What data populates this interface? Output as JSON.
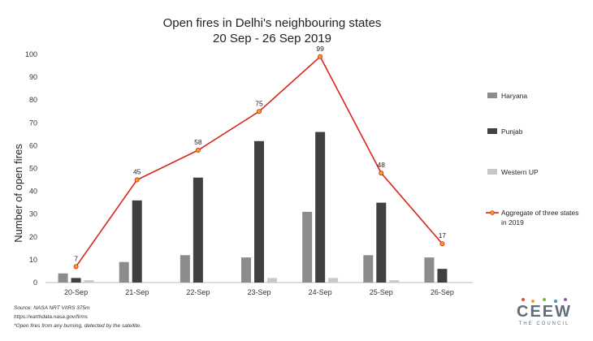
{
  "chart_data": {
    "type": "bar",
    "title": "Open fires in Delhi's neighbouring states",
    "subtitle": "20 Sep - 26 Sep 2019",
    "ylabel": "Number of open fires",
    "xlabel": "",
    "categories": [
      "20-Sep",
      "21-Sep",
      "22-Sep",
      "23-Sep",
      "24-Sep",
      "25-Sep",
      "26-Sep"
    ],
    "ylim": [
      0,
      100
    ],
    "yticks": [
      0,
      10,
      20,
      30,
      40,
      50,
      60,
      70,
      80,
      90,
      100
    ],
    "grid": false,
    "legend_position": "right",
    "series": [
      {
        "name": "Haryana",
        "type": "bar",
        "color": "#8c8c8c",
        "values": [
          4,
          9,
          12,
          11,
          31,
          12,
          11
        ]
      },
      {
        "name": "Punjab",
        "type": "bar",
        "color": "#404040",
        "values": [
          2,
          36,
          46,
          62,
          66,
          35,
          6
        ]
      },
      {
        "name": "Western UP",
        "type": "bar",
        "color": "#c8c8c8",
        "values": [
          1,
          0,
          0,
          2,
          2,
          1,
          0
        ]
      },
      {
        "name": "Aggregate of three states in 2019",
        "type": "line",
        "color": "#d9261c",
        "marker_color": "#f0a020",
        "values": [
          7,
          45,
          58,
          75,
          99,
          48,
          17
        ]
      }
    ]
  },
  "source": {
    "line1": "Source: NASA NRT VIIRS 375m",
    "line2": "https://earthdata.nasa.gov/firms",
    "line3": "*Open fires from any burning, detected by the satellite."
  },
  "logo": {
    "name": "CEEW",
    "subtitle": "THE COUNCIL",
    "dot_colors": [
      "#e84b3a",
      "#f5a623",
      "#7cb342",
      "#29a3d6",
      "#8e5ea2"
    ]
  }
}
